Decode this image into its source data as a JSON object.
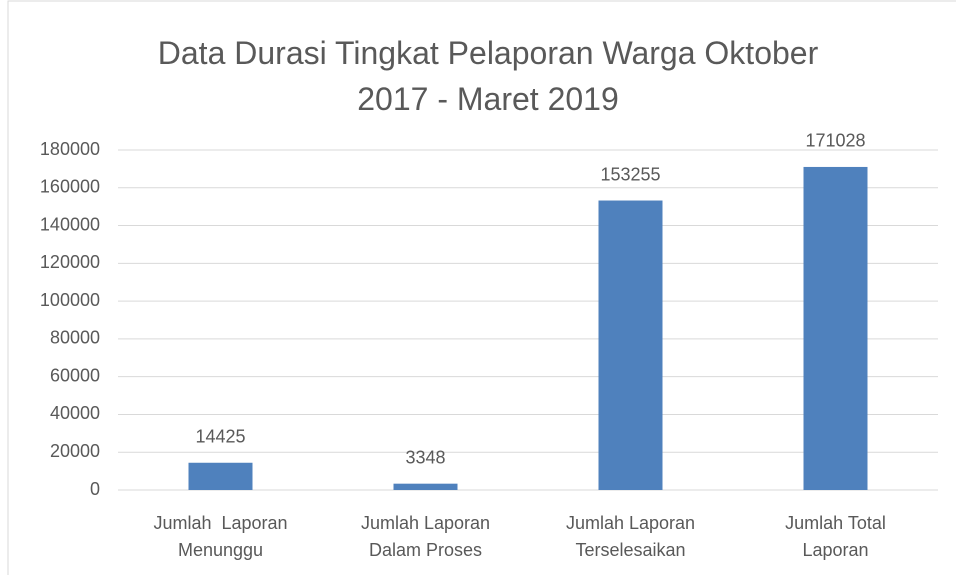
{
  "chart_data": {
    "type": "bar",
    "title": "Data Durasi Tingkat Pelaporan Warga Oktober 2017 - Maret 2019",
    "categories": [
      "Jumlah  Laporan Menunggu",
      "Jumlah Laporan Dalam Proses",
      "Jumlah Laporan Terselesaikan",
      "Jumlah Total Laporan"
    ],
    "values": [
      14425,
      3348,
      153255,
      171028
    ],
    "color": "#4f81bd",
    "ylim": [
      0,
      180000
    ],
    "yticks": [
      0,
      20000,
      40000,
      60000,
      80000,
      100000,
      120000,
      140000,
      160000,
      180000
    ],
    "grid": true
  }
}
